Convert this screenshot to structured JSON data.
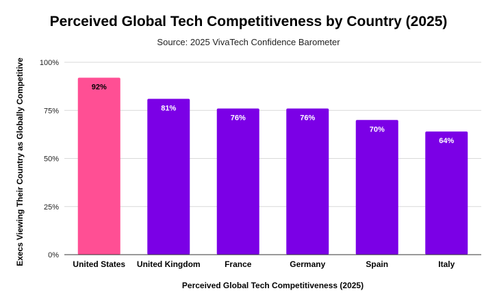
{
  "title": "Perceived Global Tech Competitiveness by Country (2025)",
  "subtitle": "Source: 2025 VivaTech Confidence Barometer",
  "chart_data": {
    "type": "bar",
    "categories": [
      "United States",
      "United Kingdom",
      "France",
      "Germany",
      "Spain",
      "Italy"
    ],
    "values": [
      92,
      81,
      76,
      76,
      70,
      64
    ],
    "data_labels": [
      "92%",
      "81%",
      "76%",
      "76%",
      "70%",
      "64%"
    ],
    "colors": [
      "#ff4f94",
      "#7b00e6",
      "#7b00e6",
      "#7b00e6",
      "#7b00e6",
      "#7b00e6"
    ],
    "label_colors": [
      "#000000",
      "#ffffff",
      "#ffffff",
      "#ffffff",
      "#ffffff",
      "#ffffff"
    ],
    "xlabel": "Perceived Global Tech Competitiveness (2025)",
    "ylabel": "Execs Viewing Their Country as Globally Competitive",
    "ylim": [
      0,
      100
    ],
    "yticks": [
      0,
      25,
      50,
      75,
      100
    ],
    "ytick_labels": [
      "0%",
      "25%",
      "50%",
      "75%",
      "100%"
    ],
    "grid": true,
    "gridline_color": "#d9d9d9",
    "axis_color": "#333333"
  }
}
